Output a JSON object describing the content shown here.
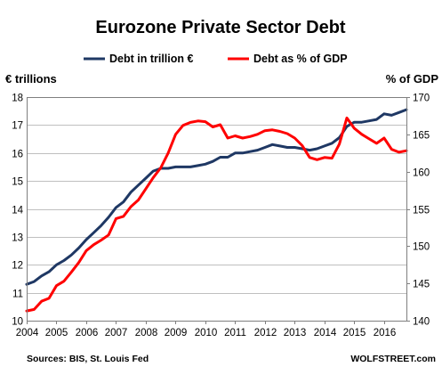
{
  "chart_data": {
    "type": "line",
    "title": "Eurozone Private Sector Debt",
    "ylabel_left": "€ trillions",
    "ylabel_right": "% of GDP",
    "xlim": [
      2004.0,
      2016.75
    ],
    "ylim_left": [
      10,
      18
    ],
    "ylim_right": [
      140,
      170
    ],
    "x_ticks": [
      "2004",
      "2005",
      "2006",
      "2007",
      "2008",
      "2009",
      "2010",
      "2011",
      "2012",
      "2013",
      "2014",
      "2015",
      "2016"
    ],
    "y_ticks_left": [
      "10",
      "11",
      "12",
      "13",
      "14",
      "15",
      "16",
      "17",
      "18"
    ],
    "y_ticks_right": [
      "140",
      "145",
      "150",
      "155",
      "160",
      "165",
      "170"
    ],
    "grid": true,
    "legend_position": "top",
    "series": [
      {
        "name": "Debt in trillion €",
        "axis": "left",
        "color": "#1f3864",
        "x": [
          2004.0,
          2004.25,
          2004.5,
          2004.75,
          2005.0,
          2005.25,
          2005.5,
          2005.75,
          2006.0,
          2006.25,
          2006.5,
          2006.75,
          2007.0,
          2007.25,
          2007.5,
          2007.75,
          2008.0,
          2008.25,
          2008.5,
          2008.75,
          2009.0,
          2009.25,
          2009.5,
          2009.75,
          2010.0,
          2010.25,
          2010.5,
          2010.75,
          2011.0,
          2011.25,
          2011.5,
          2011.75,
          2012.0,
          2012.25,
          2012.5,
          2012.75,
          2013.0,
          2013.25,
          2013.5,
          2013.75,
          2014.0,
          2014.25,
          2014.5,
          2014.75,
          2015.0,
          2015.25,
          2015.5,
          2015.75,
          2016.0,
          2016.25,
          2016.5,
          2016.75
        ],
        "values": [
          11.3,
          11.4,
          11.6,
          11.75,
          12.0,
          12.15,
          12.35,
          12.6,
          12.9,
          13.15,
          13.4,
          13.7,
          14.05,
          14.25,
          14.6,
          14.85,
          15.1,
          15.35,
          15.45,
          15.45,
          15.5,
          15.5,
          15.5,
          15.55,
          15.6,
          15.7,
          15.85,
          15.85,
          16.0,
          16.0,
          16.05,
          16.1,
          16.2,
          16.3,
          16.25,
          16.2,
          16.2,
          16.15,
          16.1,
          16.15,
          16.25,
          16.35,
          16.55,
          16.95,
          17.1,
          17.1,
          17.15,
          17.2,
          17.4,
          17.35,
          17.45,
          17.55
        ]
      },
      {
        "name": "Debt as % of GDP",
        "axis": "right",
        "color": "#ff0000",
        "x": [
          2004.0,
          2004.25,
          2004.5,
          2004.75,
          2005.0,
          2005.25,
          2005.5,
          2005.75,
          2006.0,
          2006.25,
          2006.5,
          2006.75,
          2007.0,
          2007.25,
          2007.5,
          2007.75,
          2008.0,
          2008.25,
          2008.5,
          2008.75,
          2009.0,
          2009.25,
          2009.5,
          2009.75,
          2010.0,
          2010.25,
          2010.5,
          2010.75,
          2011.0,
          2011.25,
          2011.5,
          2011.75,
          2012.0,
          2012.25,
          2012.5,
          2012.75,
          2013.0,
          2013.25,
          2013.5,
          2013.75,
          2014.0,
          2014.25,
          2014.5,
          2014.75,
          2015.0,
          2015.25,
          2015.5,
          2015.75,
          2016.0,
          2016.25,
          2016.5,
          2016.75
        ],
        "values": [
          141.3,
          141.5,
          142.6,
          143.0,
          144.7,
          145.3,
          146.5,
          147.8,
          149.4,
          150.2,
          150.8,
          151.5,
          153.7,
          154.0,
          155.3,
          156.2,
          157.7,
          159.2,
          160.5,
          162.5,
          165.0,
          166.2,
          166.6,
          166.8,
          166.7,
          166.0,
          166.3,
          164.5,
          164.8,
          164.5,
          164.7,
          165.0,
          165.5,
          165.6,
          165.4,
          165.1,
          164.5,
          163.5,
          161.9,
          161.6,
          161.9,
          161.8,
          163.7,
          167.2,
          165.8,
          165.0,
          164.4,
          163.8,
          164.5,
          163.0,
          162.6,
          162.8
        ]
      }
    ]
  },
  "footer": {
    "source": "Sources: BIS, St. Louis Fed",
    "brand": "WOLFSTREET.com"
  }
}
